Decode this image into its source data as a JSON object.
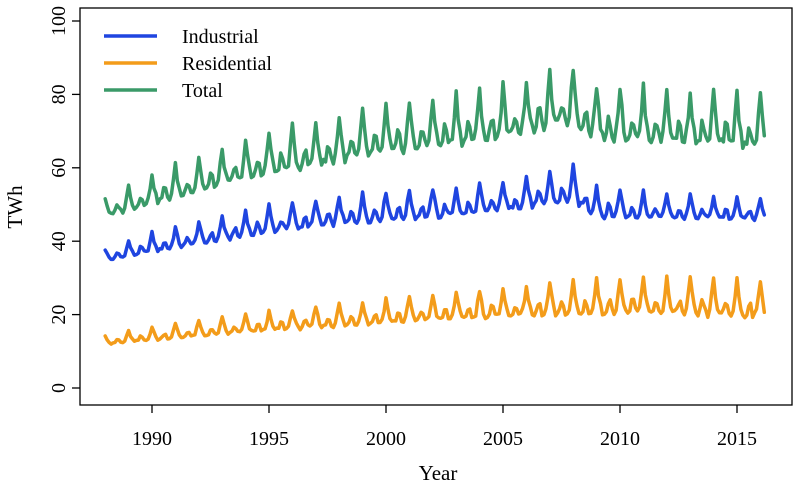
{
  "chart_data": {
    "type": "line",
    "xlabel": "Year",
    "ylabel": "TWh",
    "xlim": [
      1988,
      2016.3
    ],
    "ylim": [
      0,
      100
    ],
    "x_ticks": [
      1990,
      1995,
      2000,
      2005,
      2010,
      2015
    ],
    "y_ticks": [
      0,
      20,
      40,
      60,
      80,
      100
    ],
    "grid": false,
    "legend_position": "top-left",
    "data_range_years": [
      1988,
      2016
    ],
    "series": [
      {
        "name": "Industrial",
        "color": "#1f45e0",
        "annual_anchors": [
          [
            1988,
            35.5
          ],
          [
            1990,
            38.5
          ],
          [
            1993,
            42.0
          ],
          [
            1995,
            44.5
          ],
          [
            1997,
            46.0
          ],
          [
            2000,
            48.0
          ],
          [
            2003,
            49.0
          ],
          [
            2005,
            50.5
          ],
          [
            2008,
            53.5
          ],
          [
            2009,
            49.0
          ],
          [
            2012,
            48.0
          ],
          [
            2016,
            47.5
          ]
        ],
        "annual_peak_amplitude": [
          [
            1988,
            3
          ],
          [
            1990,
            5
          ],
          [
            1994,
            7
          ],
          [
            2000,
            7.5
          ],
          [
            2005,
            8
          ],
          [
            2008,
            9
          ],
          [
            2011,
            7
          ],
          [
            2016,
            6
          ]
        ]
      },
      {
        "name": "Residential",
        "color": "#f39c1a",
        "annual_anchors": [
          [
            1988,
            12.5
          ],
          [
            1990,
            14.0
          ],
          [
            1995,
            17.0
          ],
          [
            2000,
            19.5
          ],
          [
            2005,
            21.5
          ],
          [
            2010,
            23.0
          ],
          [
            2016,
            22.0
          ]
        ],
        "annual_peak_amplitude": [
          [
            1988,
            2.5
          ],
          [
            1990,
            3.5
          ],
          [
            1995,
            5
          ],
          [
            2000,
            6.5
          ],
          [
            2005,
            8
          ],
          [
            2010,
            9.5
          ],
          [
            2016,
            10
          ]
        ]
      },
      {
        "name": "Total",
        "color": "#3a9a68",
        "annual_anchors": [
          [
            1988,
            48.0
          ],
          [
            1990,
            52.5
          ],
          [
            1995,
            61.5
          ],
          [
            2000,
            67.5
          ],
          [
            2005,
            72.0
          ],
          [
            2008,
            76.5
          ],
          [
            2009,
            72.0
          ],
          [
            2012,
            71.0
          ],
          [
            2016,
            69.5
          ]
        ],
        "annual_peak_amplitude": [
          [
            1988,
            5
          ],
          [
            1990,
            8
          ],
          [
            1995,
            11
          ],
          [
            2000,
            12.5
          ],
          [
            2005,
            14
          ],
          [
            2008,
            14.5
          ],
          [
            2011,
            14
          ],
          [
            2016,
            14
          ]
        ]
      }
    ]
  }
}
